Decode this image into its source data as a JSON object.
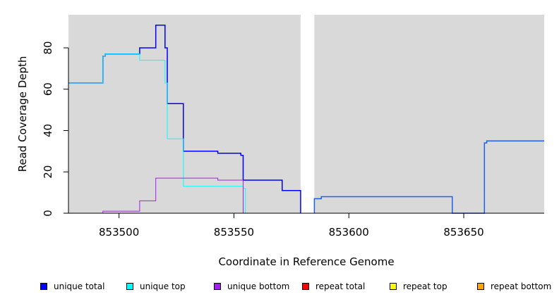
{
  "chart_data": {
    "type": "line",
    "title": "",
    "xlabel": "Coordinate in Reference Genome",
    "ylabel": "Read Coverage Depth",
    "xlim": [
      853478,
      853685
    ],
    "ylim": [
      0,
      96
    ],
    "xticks": [
      853500,
      853550,
      853600,
      853650
    ],
    "yticks": [
      0,
      20,
      40,
      60,
      80
    ],
    "background_color": "#d9d9d9",
    "gap_region": [
      853579,
      853585
    ],
    "legend_position": "bottom",
    "series": [
      {
        "name": "unique total",
        "color": "#0000ff",
        "values": [
          [
            853478,
            63
          ],
          [
            853493,
            63
          ],
          [
            853493,
            76
          ],
          [
            853494,
            76
          ],
          [
            853494,
            77
          ],
          [
            853509,
            77
          ],
          [
            853509,
            80
          ],
          [
            853516,
            80
          ],
          [
            853516,
            91
          ],
          [
            853520,
            91
          ],
          [
            853520,
            80
          ],
          [
            853521,
            80
          ],
          [
            853521,
            53
          ],
          [
            853528,
            53
          ],
          [
            853528,
            30
          ],
          [
            853543,
            30
          ],
          [
            853543,
            29
          ],
          [
            853553,
            29
          ],
          [
            853553,
            28
          ],
          [
            853554,
            28
          ],
          [
            853554,
            16
          ],
          [
            853571,
            16
          ],
          [
            853571,
            11
          ],
          [
            853579,
            11
          ],
          [
            853579,
            0
          ]
        ]
      },
      {
        "name": "unique top",
        "color": "#00ffff",
        "values": [
          [
            853478,
            63
          ],
          [
            853493,
            63
          ],
          [
            853493,
            76
          ],
          [
            853494,
            76
          ],
          [
            853494,
            77
          ],
          [
            853509,
            77
          ],
          [
            853509,
            74
          ],
          [
            853520,
            74
          ],
          [
            853520,
            63
          ],
          [
            853521,
            63
          ],
          [
            853521,
            36
          ],
          [
            853528,
            36
          ],
          [
            853528,
            13
          ],
          [
            853554,
            13
          ],
          [
            853554,
            12
          ],
          [
            853555,
            12
          ],
          [
            853555,
            0
          ],
          [
            853579,
            0
          ]
        ]
      },
      {
        "name": "unique bottom",
        "color": "#a020f0",
        "values": [
          [
            853478,
            0
          ],
          [
            853493,
            0
          ],
          [
            853493,
            1
          ],
          [
            853509,
            1
          ],
          [
            853509,
            6
          ],
          [
            853516,
            6
          ],
          [
            853516,
            17
          ],
          [
            853543,
            17
          ],
          [
            853543,
            16
          ],
          [
            853554,
            16
          ],
          [
            853554,
            0
          ],
          [
            853579,
            0
          ]
        ]
      },
      {
        "name": "repeat total",
        "color": "#ff0000",
        "values": [
          [
            853478,
            0
          ],
          [
            853579,
            0
          ]
        ]
      },
      {
        "name": "repeat top",
        "color": "#ffff00",
        "values": [
          [
            853478,
            0
          ],
          [
            853579,
            0
          ]
        ]
      },
      {
        "name": "repeat bottom",
        "color": "#ffa500",
        "values": [
          [
            853478,
            0
          ],
          [
            853579,
            0
          ]
        ]
      },
      {
        "name": "",
        "color": "#ff0000",
        "values": [
          [
            853585,
            0
          ],
          [
            853685,
            0
          ]
        ]
      },
      {
        "name": "",
        "color": "#1e5ef5",
        "values": [
          [
            853585,
            0
          ],
          [
            853585,
            7
          ],
          [
            853588,
            7
          ],
          [
            853588,
            8
          ],
          [
            853645,
            8
          ],
          [
            853645,
            0
          ],
          [
            853659,
            0
          ],
          [
            853659,
            34
          ],
          [
            853660,
            34
          ],
          [
            853660,
            35
          ],
          [
            853685,
            35
          ]
        ]
      }
    ]
  }
}
